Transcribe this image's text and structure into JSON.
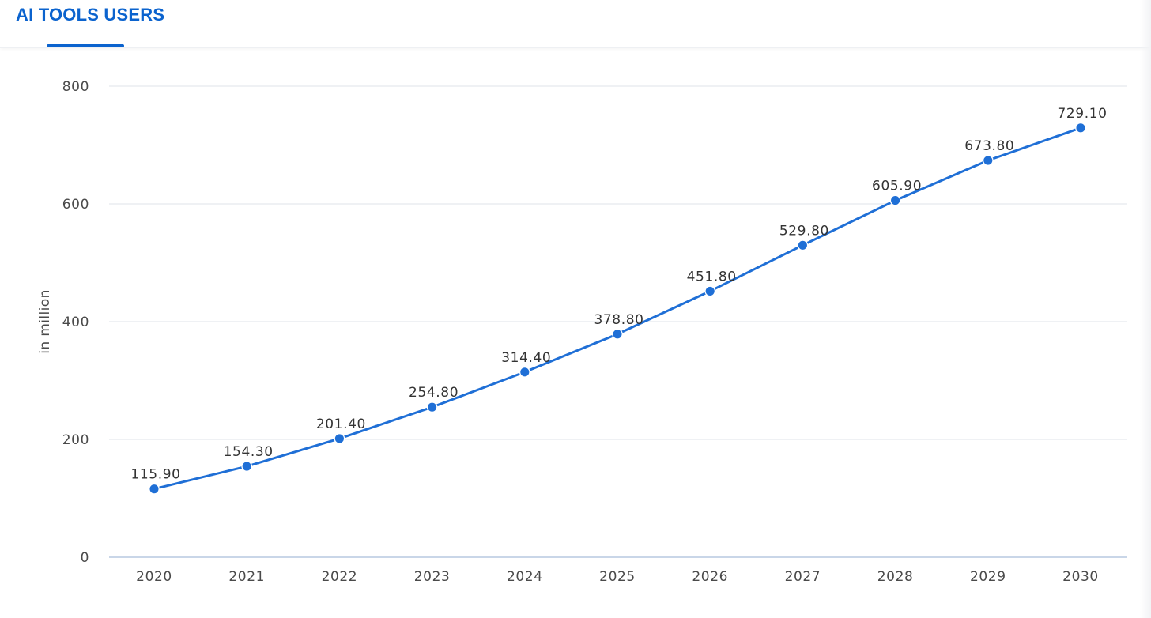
{
  "tabs": [
    {
      "label": "AI TOOLS USERS",
      "active": true
    }
  ],
  "chart_data": {
    "type": "line",
    "title": "",
    "xlabel": "",
    "ylabel": "in million",
    "x": [
      "2020",
      "2021",
      "2022",
      "2023",
      "2024",
      "2025",
      "2026",
      "2027",
      "2028",
      "2029",
      "2030"
    ],
    "series": [
      {
        "values": [
          115.9,
          154.3,
          201.4,
          254.8,
          314.4,
          378.8,
          451.8,
          529.8,
          605.9,
          673.8,
          729.1
        ],
        "labels": [
          "115.90",
          "154.30",
          "201.40",
          "254.80",
          "314.40",
          "378.80",
          "451.80",
          "529.80",
          "605.90",
          "673.80",
          "729.10"
        ]
      }
    ],
    "ylim": [
      0,
      800
    ],
    "yticks": [
      "0",
      "200",
      "400",
      "600",
      "800"
    ],
    "grid": true,
    "colors": {
      "line": "#1f6fd6",
      "grid": "#dfe3e8",
      "baseline": "#a9bedb",
      "accent": "#0b63ce"
    }
  }
}
